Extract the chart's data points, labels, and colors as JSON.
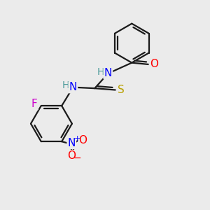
{
  "background_color": "#ebebeb",
  "bond_color": "#1a1a1a",
  "atom_colors": {
    "O": "#ff0000",
    "N": "#0000ff",
    "S": "#b8a000",
    "F": "#cc00cc",
    "H_label": "#4a9a9a",
    "C": "#1a1a1a"
  },
  "font_size_atoms": 11,
  "font_size_h": 10
}
